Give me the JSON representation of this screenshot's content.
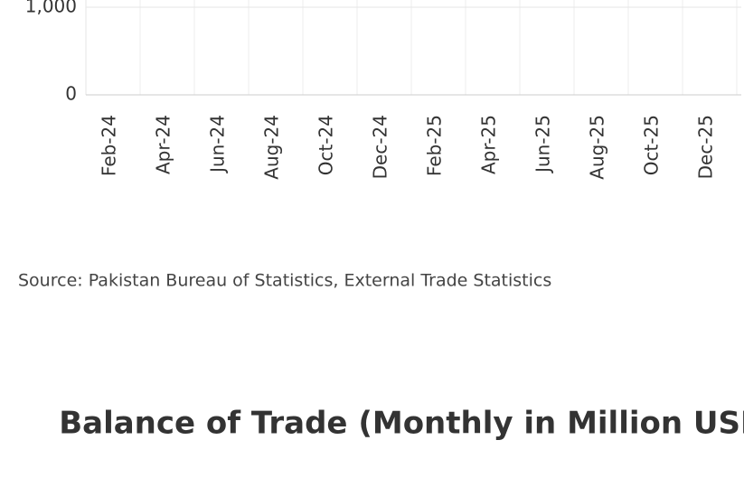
{
  "chart_data": [
    {
      "type": "bar",
      "categories": [
        "Feb-24",
        "Apr-24",
        "Jun-24",
        "Aug-24",
        "Oct-24",
        "Dec-24",
        "Feb-25",
        "Apr-25",
        "Jun-25",
        "Aug-25",
        "Oct-25",
        "Dec-25"
      ],
      "ylim": [
        0,
        1000
      ],
      "yticks": [
        0,
        {
          "value": 1000,
          "label": "1,000"
        }
      ],
      "grid": true,
      "source": "Source: Pakistan Bureau of Statistics, External Trade Statistics"
    },
    {
      "type": "bar",
      "title": "Balance of Trade (Monthly in Million USD)"
    }
  ]
}
